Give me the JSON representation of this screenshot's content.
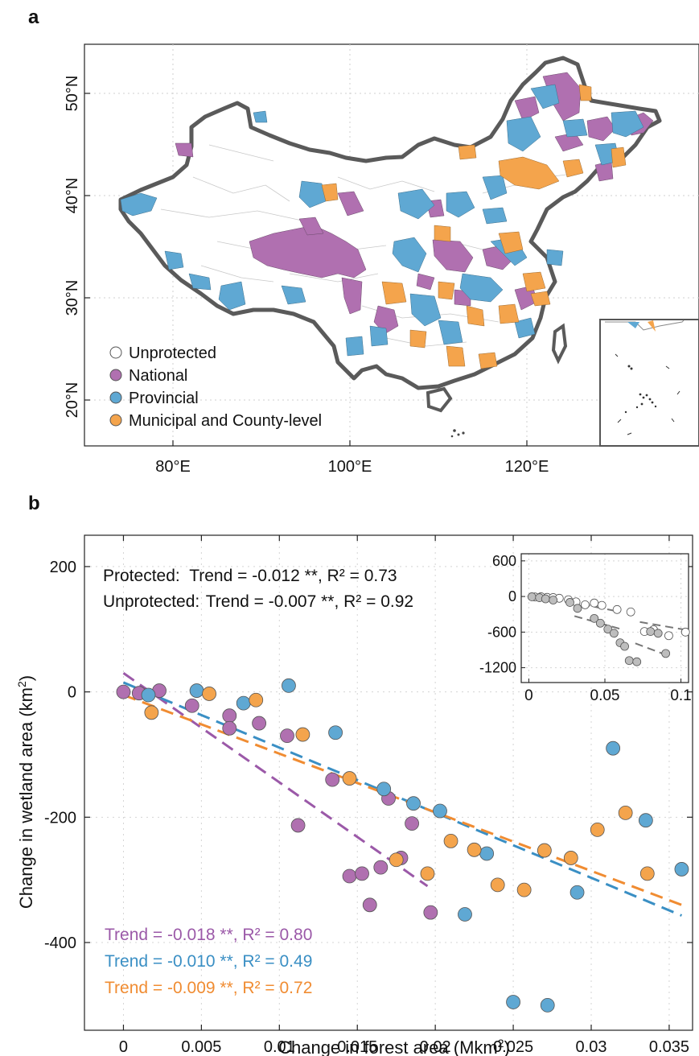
{
  "panel_a": {
    "label": "a",
    "lat_ticks": [
      "20°N",
      "30°N",
      "40°N",
      "50°N"
    ],
    "lon_ticks": [
      "80°E",
      "100°E",
      "120°E"
    ],
    "legend": [
      {
        "label": "Unprotected",
        "color": "#ffffff"
      },
      {
        "label": "National",
        "color": "#b070b0"
      },
      {
        "label": "Provincial",
        "color": "#5fa8d3"
      },
      {
        "label": "Municipal and County-level",
        "color": "#f4a44c"
      }
    ]
  },
  "panel_b": {
    "label": "b",
    "annotations": {
      "protected_prefix": "Protected:",
      "protected_stats": "Trend = -0.012 **, R² = 0.73",
      "unprotected_prefix": "Unprotected:",
      "unprotected_stats": "Trend = -0.007 **, R² = 0.92"
    },
    "trend_labels": [
      {
        "text": "Trend = -0.018 **, R² = 0.80",
        "color": "#9b59a8"
      },
      {
        "text": "Trend = -0.010 **, R² = 0.49",
        "color": "#3a8fc4"
      },
      {
        "text": "Trend = -0.009 **, R² = 0.72",
        "color": "#f08c32"
      }
    ]
  },
  "chart_data": [
    {
      "type": "scatter",
      "xlabel": "Change in forest area (Mkm²)",
      "ylabel": "Change in wetland area (km²)",
      "xlim": [
        -0.0025,
        0.0365
      ],
      "ylim": [
        -540,
        250
      ],
      "x_ticks": [
        0,
        0.005,
        0.01,
        0.015,
        0.02,
        0.025,
        0.03,
        0.035
      ],
      "x_tick_labels": [
        "0",
        "0.005",
        "0.01",
        "0.015",
        "0.02",
        "0.025",
        "0.03",
        "0.035"
      ],
      "y_ticks": [
        -400,
        -200,
        0,
        200
      ],
      "y_tick_labels": [
        "-400",
        "-200",
        "0",
        "200"
      ],
      "grid": true,
      "series": [
        {
          "name": "National",
          "color": "#b070b0",
          "line_color": "#9b59a8",
          "x": [
            0,
            0.001,
            0.0023,
            0.0044,
            0.0068,
            0.0087,
            0.0105,
            0.0112,
            0.0134,
            0.0145,
            0.0165,
            0.017,
            0.0178,
            0.0185,
            0.0197,
            0.0158,
            0.0153,
            0.0068
          ],
          "y": [
            0,
            -2,
            2,
            -22,
            -38,
            -50,
            -70,
            -213,
            -140,
            -294,
            -280,
            -170,
            -265,
            -210,
            -352,
            -340,
            -290,
            -58
          ],
          "trend": {
            "x": [
              0,
              0.0195
            ],
            "y": [
              30,
              -310
            ]
          }
        },
        {
          "name": "Provincial",
          "color": "#5fa8d3",
          "line_color": "#3a8fc4",
          "x": [
            0.0016,
            0.0047,
            0.0077,
            0.0106,
            0.0136,
            0.0167,
            0.0186,
            0.0203,
            0.0219,
            0.0233,
            0.025,
            0.0272,
            0.0291,
            0.0314,
            0.0335,
            0.0358
          ],
          "y": [
            -5,
            2,
            -18,
            10,
            -65,
            -155,
            -178,
            -190,
            -355,
            -258,
            -495,
            -500,
            -320,
            -90,
            -205,
            -283
          ],
          "trend": {
            "x": [
              0,
              0.0358
            ],
            "y": [
              15,
              -357
            ]
          }
        },
        {
          "name": "Municipal and County-level",
          "color": "#f4a44c",
          "line_color": "#f08c32",
          "x": [
            0.0018,
            0.0055,
            0.0085,
            0.0115,
            0.0145,
            0.0175,
            0.0195,
            0.021,
            0.0225,
            0.024,
            0.0257,
            0.027,
            0.0287,
            0.0304,
            0.0322,
            0.0336
          ],
          "y": [
            -33,
            -3,
            -13,
            -68,
            -138,
            -268,
            -290,
            -238,
            -252,
            -308,
            -316,
            -253,
            -265,
            -220,
            -193,
            -290
          ],
          "trend": {
            "x": [
              0,
              0.0358
            ],
            "y": [
              -5,
              -340
            ]
          }
        }
      ]
    },
    {
      "type": "scatter",
      "title": "inset",
      "xlim": [
        -0.005,
        0.105
      ],
      "ylim": [
        -1450,
        720
      ],
      "x_ticks": [
        0,
        0.05,
        0.1
      ],
      "x_tick_labels": [
        "0",
        "0.05",
        "0.1"
      ],
      "y_ticks": [
        -1200,
        -600,
        0,
        600
      ],
      "y_tick_labels": [
        "-1200",
        "-600",
        "0",
        "600"
      ],
      "grid": true,
      "series": [
        {
          "name": "Unprotected",
          "color": "#ffffff",
          "x": [
            0.004,
            0.008,
            0.012,
            0.016,
            0.02,
            0.026,
            0.031,
            0.037,
            0.043,
            0.048,
            0.058,
            0.067,
            0.076,
            0.082,
            0.092,
            0.103
          ],
          "y": [
            -8,
            -5,
            -15,
            -18,
            -30,
            -55,
            -90,
            -140,
            -110,
            -150,
            -220,
            -260,
            -590,
            -560,
            -660,
            -600
          ],
          "trend_segments": [
            [
              0.0,
              0.03,
              0,
              -70
            ],
            [
              0.035,
              0.06,
              -130,
              -260
            ],
            [
              0.073,
              0.105,
              -430,
              -570
            ]
          ]
        },
        {
          "name": "Protected",
          "color": "#bdbdbd",
          "x": [
            0.002,
            0.007,
            0.011,
            0.016,
            0.027,
            0.032,
            0.043,
            0.047,
            0.052,
            0.056,
            0.06,
            0.063,
            0.066,
            0.071,
            0.08,
            0.085,
            0.09
          ],
          "y": [
            -5,
            -20,
            -40,
            -60,
            -100,
            -200,
            -370,
            -450,
            -550,
            -620,
            -780,
            -840,
            -1080,
            -1100,
            -590,
            -620,
            -960
          ],
          "trend_segments": [
            [
              0.0,
              0.025,
              0,
              -80
            ],
            [
              0.03,
              0.062,
              -330,
              -560
            ],
            [
              0.07,
              0.093,
              -790,
              -1010
            ]
          ]
        }
      ]
    }
  ]
}
